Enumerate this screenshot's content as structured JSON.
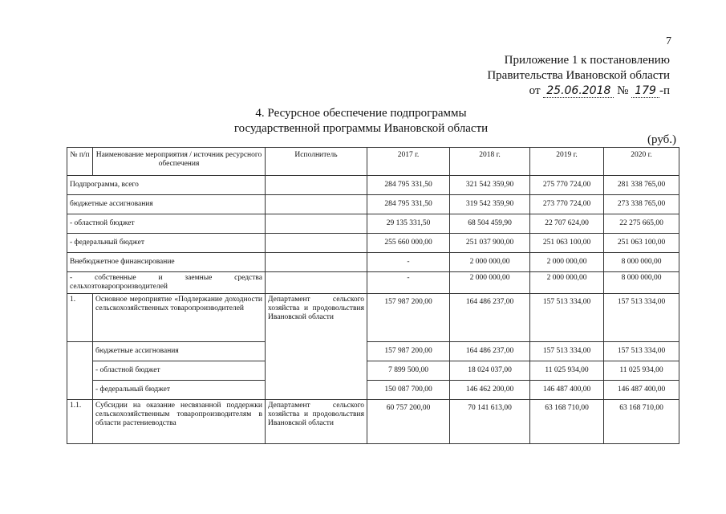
{
  "page_number": "7",
  "appendix": {
    "line1": "Приложение 1 к постановлению",
    "line2": "Правительства Ивановской области",
    "from": "от",
    "date": "25.06.2018",
    "no": "№",
    "number": "179",
    "suffix": "-п"
  },
  "title": {
    "line1": "4. Ресурсное обеспечение подпрограммы",
    "line2": "государственной программы Ивановской области"
  },
  "unit": "(руб.)",
  "table": {
    "headers": [
      "№ п/п",
      "Наименование мероприятия / источник ресурсного обеспечения",
      "Исполнитель",
      "2017 г.",
      "2018 г.",
      "2019 г.",
      "2020 г."
    ],
    "summary_rows": [
      {
        "label": "Подпрограмма, всего",
        "values": [
          "284 795 331,50",
          "321 542 359,90",
          "275 770 724,00",
          "281 338 765,00"
        ]
      },
      {
        "label": "бюджетные ассигнования",
        "values": [
          "284 795 331,50",
          "319 542 359,90",
          "273 770 724,00",
          "273 338 765,00"
        ]
      },
      {
        "label": "- областной бюджет",
        "values": [
          "29 135 331,50",
          "68 504 459,90",
          "22 707 624,00",
          "22 275 665,00"
        ]
      },
      {
        "label": "- федеральный бюджет",
        "values": [
          "255 660 000,00",
          "251 037 900,00",
          "251 063 100,00",
          "251 063 100,00"
        ]
      },
      {
        "label": "Внебюджетное финансирование",
        "values": [
          "-",
          "2 000 000,00",
          "2 000 000,00",
          "8 000 000,00"
        ]
      },
      {
        "label": "- собственные и заемные средства сельхозтоваропроизводителей",
        "values": [
          "-",
          "2 000 000,00",
          "2 000 000,00",
          "8 000 000,00"
        ]
      }
    ],
    "section1": {
      "no": "1.",
      "name": "Основное мероприятие «Подлержание доходности сельскохозяйственных товаропроизводителей",
      "executor": "Департамент сельского хозяйства и продовольствия Ивановской области",
      "values": [
        "157 987 200,00",
        "164 486 237,00",
        "157 513 334,00",
        "157 513 334,00"
      ],
      "sub": [
        {
          "label": "бюджетные ассигнования",
          "values": [
            "157 987 200,00",
            "164 486 237,00",
            "157 513 334,00",
            "157 513 334,00"
          ]
        },
        {
          "label": "- областной бюджет",
          "values": [
            "7 899 500,00",
            "18 024 037,00",
            "11 025 934,00",
            "11 025 934,00"
          ]
        },
        {
          "label": "- федеральный бюджет",
          "values": [
            "150 087 700,00",
            "146 462 200,00",
            "146 487 400,00",
            "146 487 400,00"
          ]
        }
      ]
    },
    "section11": {
      "no": "1.1.",
      "name": "Субсидии на оказание несвязанной поддержки сельскохозяйственным товаропроизводителям в области растениеводства",
      "executor": "Департамент сельского хозяйства и продовольствия Ивановской области",
      "values": [
        "60 757 200,00",
        "70 141 613,00",
        "63 168 710,00",
        "63 168 710,00"
      ]
    }
  }
}
